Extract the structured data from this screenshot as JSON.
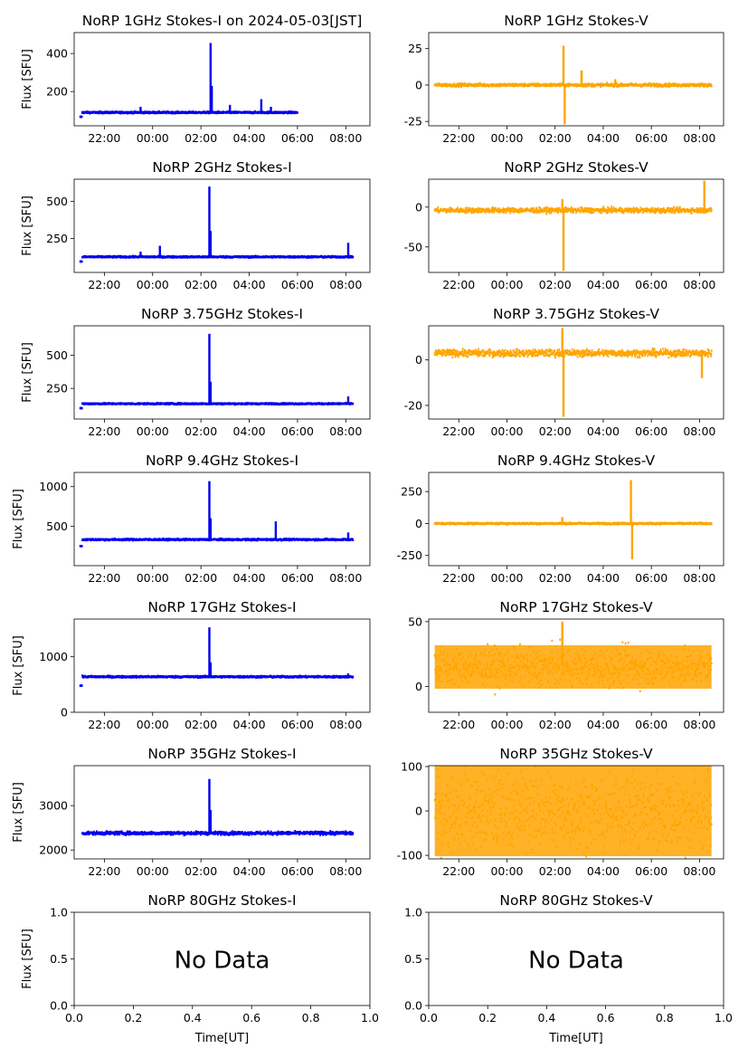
{
  "figure": {
    "xtick_labels": [
      "22:00",
      "00:00",
      "02:00",
      "04:00",
      "06:00",
      "08:00"
    ],
    "no_data_text": "No Data",
    "ylabel": "Flux [SFU]",
    "xlabel": "Time[UT]",
    "colors": {
      "stokes_i": "#0000ee",
      "stokes_v": "#ffa500"
    }
  },
  "chart_data": [
    {
      "type": "scatter",
      "title": "NoRP 1GHz Stokes-I on 2024-05-03[JST]",
      "stokes": "I",
      "ylabel": "Flux [SFU]",
      "ylim": [
        20,
        510
      ],
      "yticks": [
        200,
        400
      ],
      "xlim": [
        20.75,
        33.0
      ],
      "t_range": [
        21.0,
        30.0
      ],
      "baseline": 90,
      "noise": 4,
      "peaks": [
        [
          26.4,
          455,
          0.05
        ],
        [
          26.45,
          230,
          0.05
        ],
        [
          23.5,
          120,
          0.05
        ],
        [
          27.2,
          130,
          0.08
        ],
        [
          28.5,
          160,
          0.05
        ],
        [
          28.9,
          120,
          0.05
        ]
      ]
    },
    {
      "type": "scatter",
      "title": "NoRP 1GHz Stokes-V",
      "stokes": "V",
      "ylim": [
        -28,
        36
      ],
      "yticks": [
        -25,
        0,
        25
      ],
      "xlim": [
        20.75,
        33.0
      ],
      "t_range": [
        21.0,
        32.5
      ],
      "baseline": 0,
      "noise": 1,
      "peaks": [
        [
          26.35,
          27,
          0.04
        ],
        [
          26.4,
          -27,
          0.04
        ],
        [
          27.1,
          10,
          0.1
        ],
        [
          28.5,
          4,
          0.05
        ]
      ]
    },
    {
      "type": "scatter",
      "title": "NoRP 2GHz Stokes-I",
      "stokes": "I",
      "ylabel": "Flux [SFU]",
      "ylim": [
        20,
        650
      ],
      "yticks": [
        250,
        500
      ],
      "xlim": [
        20.75,
        33.0
      ],
      "t_range": [
        21.0,
        32.3
      ],
      "baseline": 125,
      "noise": 5,
      "peaks": [
        [
          26.35,
          600,
          0.05
        ],
        [
          26.4,
          300,
          0.08
        ],
        [
          24.3,
          200,
          0.05
        ],
        [
          32.1,
          220,
          0.05
        ],
        [
          23.5,
          160,
          0.05
        ]
      ]
    },
    {
      "type": "scatter",
      "title": "NoRP 2GHz Stokes-V",
      "stokes": "V",
      "ylim": [
        -82,
        35
      ],
      "yticks": [
        -50,
        0
      ],
      "xlim": [
        20.75,
        33.0
      ],
      "t_range": [
        21.0,
        32.5
      ],
      "baseline": -4,
      "noise": 3,
      "peaks": [
        [
          26.35,
          -80,
          0.05
        ],
        [
          26.3,
          10,
          0.03
        ],
        [
          32.2,
          33,
          0.03
        ]
      ]
    },
    {
      "type": "scatter",
      "title": "NoRP 3.75GHz Stokes-I",
      "stokes": "I",
      "ylabel": "Flux [SFU]",
      "ylim": [
        20,
        720
      ],
      "yticks": [
        250,
        500
      ],
      "xlim": [
        20.75,
        33.0
      ],
      "t_range": [
        21.0,
        32.3
      ],
      "baseline": 135,
      "noise": 5,
      "peaks": [
        [
          26.35,
          660,
          0.05
        ],
        [
          26.4,
          300,
          0.06
        ],
        [
          32.1,
          190,
          0.05
        ]
      ]
    },
    {
      "type": "scatter",
      "title": "NoRP 3.75GHz Stokes-V",
      "stokes": "V",
      "ylim": [
        -26,
        15
      ],
      "yticks": [
        -20,
        0
      ],
      "xlim": [
        20.75,
        33.0
      ],
      "t_range": [
        21.0,
        32.5
      ],
      "baseline": 3,
      "noise": 1.5,
      "peaks": [
        [
          26.35,
          -25,
          0.04
        ],
        [
          26.3,
          14,
          0.03
        ],
        [
          32.1,
          -8,
          0.08
        ]
      ]
    },
    {
      "type": "scatter",
      "title": "NoRP 9.4GHz Stokes-I",
      "stokes": "I",
      "ylabel": "Flux [SFU]",
      "ylim": [
        0,
        1180
      ],
      "yticks": [
        500,
        1000
      ],
      "xlim": [
        20.75,
        33.0
      ],
      "t_range": [
        21.0,
        32.3
      ],
      "baseline": 330,
      "noise": 10,
      "peaks": [
        [
          26.35,
          1070,
          0.05
        ],
        [
          26.4,
          600,
          0.06
        ],
        [
          29.1,
          560,
          0.05
        ],
        [
          32.1,
          420,
          0.05
        ]
      ]
    },
    {
      "type": "scatter",
      "title": "NoRP 9.4GHz Stokes-V",
      "stokes": "V",
      "ylim": [
        -330,
        400
      ],
      "yticks": [
        -250,
        0,
        250
      ],
      "xlim": [
        20.75,
        33.0
      ],
      "t_range": [
        21.0,
        32.5
      ],
      "baseline": 0,
      "noise": 6,
      "peaks": [
        [
          29.15,
          340,
          0.05
        ],
        [
          29.2,
          -280,
          0.05
        ],
        [
          26.3,
          50,
          0.05
        ]
      ]
    },
    {
      "type": "scatter",
      "title": "NoRP 17GHz Stokes-I",
      "stokes": "I",
      "ylabel": "Flux [SFU]",
      "ylim": [
        0,
        1680
      ],
      "yticks": [
        0,
        1000
      ],
      "xlim": [
        20.75,
        33.0
      ],
      "t_range": [
        21.0,
        32.3
      ],
      "baseline": 640,
      "noise": 15,
      "peaks": [
        [
          26.35,
          1530,
          0.05
        ],
        [
          26.4,
          900,
          0.06
        ],
        [
          32.1,
          700,
          0.05
        ]
      ]
    },
    {
      "type": "scatter",
      "title": "NoRP 17GHz Stokes-V",
      "stokes": "V",
      "ylim": [
        -20,
        52
      ],
      "yticks": [
        0,
        50
      ],
      "xlim": [
        20.75,
        33.0
      ],
      "t_range": [
        21.0,
        32.5
      ],
      "baseline": 15,
      "noise": 14,
      "peaks": [
        [
          26.3,
          50,
          0.03
        ]
      ]
    },
    {
      "type": "scatter",
      "title": "NoRP 35GHz Stokes-I",
      "stokes": "I",
      "ylabel": "Flux [SFU]",
      "ylim": [
        1800,
        3900
      ],
      "yticks": [
        2000,
        3000
      ],
      "xlim": [
        20.75,
        33.0
      ],
      "t_range": [
        21.0,
        32.3
      ],
      "baseline": 2380,
      "noise": 35,
      "peaks": [
        [
          26.35,
          3600,
          0.05
        ],
        [
          26.4,
          2900,
          0.06
        ]
      ]
    },
    {
      "type": "scatter",
      "title": "NoRP 35GHz Stokes-V",
      "stokes": "V",
      "ylim": [
        -108,
        102
      ],
      "yticks": [
        -100,
        0,
        100
      ],
      "xlim": [
        20.75,
        33.0
      ],
      "t_range": [
        21.0,
        32.5
      ],
      "baseline": 0,
      "noise": 85,
      "peaks": []
    },
    {
      "type": "scatter",
      "title": "NoRP 80GHz Stokes-I",
      "stokes": "I",
      "ylabel": "Flux [SFU]",
      "xlabel": "Time[UT]",
      "empty": true,
      "ylim": [
        0,
        1
      ],
      "xlim": [
        0,
        1
      ],
      "yticks": [
        "0.0",
        "0.5",
        "1.0"
      ],
      "xticks": [
        "0.0",
        "0.2",
        "0.4",
        "0.6",
        "0.8",
        "1.0"
      ]
    },
    {
      "type": "scatter",
      "title": "NoRP 80GHz Stokes-V",
      "stokes": "V",
      "xlabel": "Time[UT]",
      "empty": true,
      "ylim": [
        0,
        1
      ],
      "xlim": [
        0,
        1
      ],
      "yticks": [
        "0.0",
        "0.5",
        "1.0"
      ],
      "xticks": [
        "0.0",
        "0.2",
        "0.4",
        "0.6",
        "0.8",
        "1.0"
      ]
    }
  ]
}
